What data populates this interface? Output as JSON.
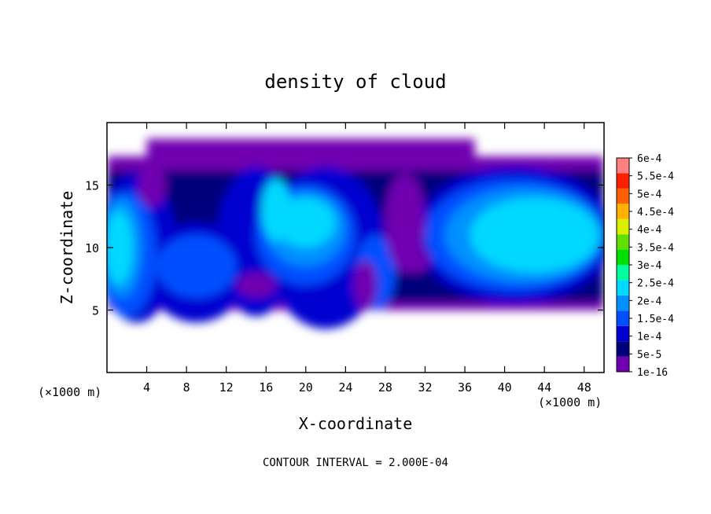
{
  "chart_data": {
    "type": "heatmap",
    "title": "density of cloud",
    "xlabel": "X-coordinate",
    "ylabel": "Z-coordinate",
    "x_unit": "(×1000 m)",
    "z_unit": "(×1000 m)",
    "xlim": [
      0,
      50
    ],
    "ylim": [
      0,
      20
    ],
    "x_ticks": [
      4,
      8,
      12,
      16,
      20,
      24,
      28,
      32,
      36,
      40,
      44,
      48
    ],
    "y_ticks": [
      5,
      10,
      15
    ],
    "colorbar": {
      "levels": [
        "1e-16",
        "5e-5",
        "1e-4",
        "1.5e-4",
        "2e-4",
        "2.5e-4",
        "3e-4",
        "3.5e-4",
        "4e-4",
        "4.5e-4",
        "5e-4",
        "5.5e-4",
        "6e-4"
      ],
      "colors": [
        "#7000b0",
        "#00007c",
        "#0000d0",
        "#0050ff",
        "#0090ff",
        "#00d8ff",
        "#00ff9c",
        "#00e000",
        "#60e000",
        "#d8f000",
        "#ffb000",
        "#ff6000",
        "#ff2000",
        "#ff8080"
      ]
    },
    "note": "CONTOUR INTERVAL = 2.000E-04"
  }
}
